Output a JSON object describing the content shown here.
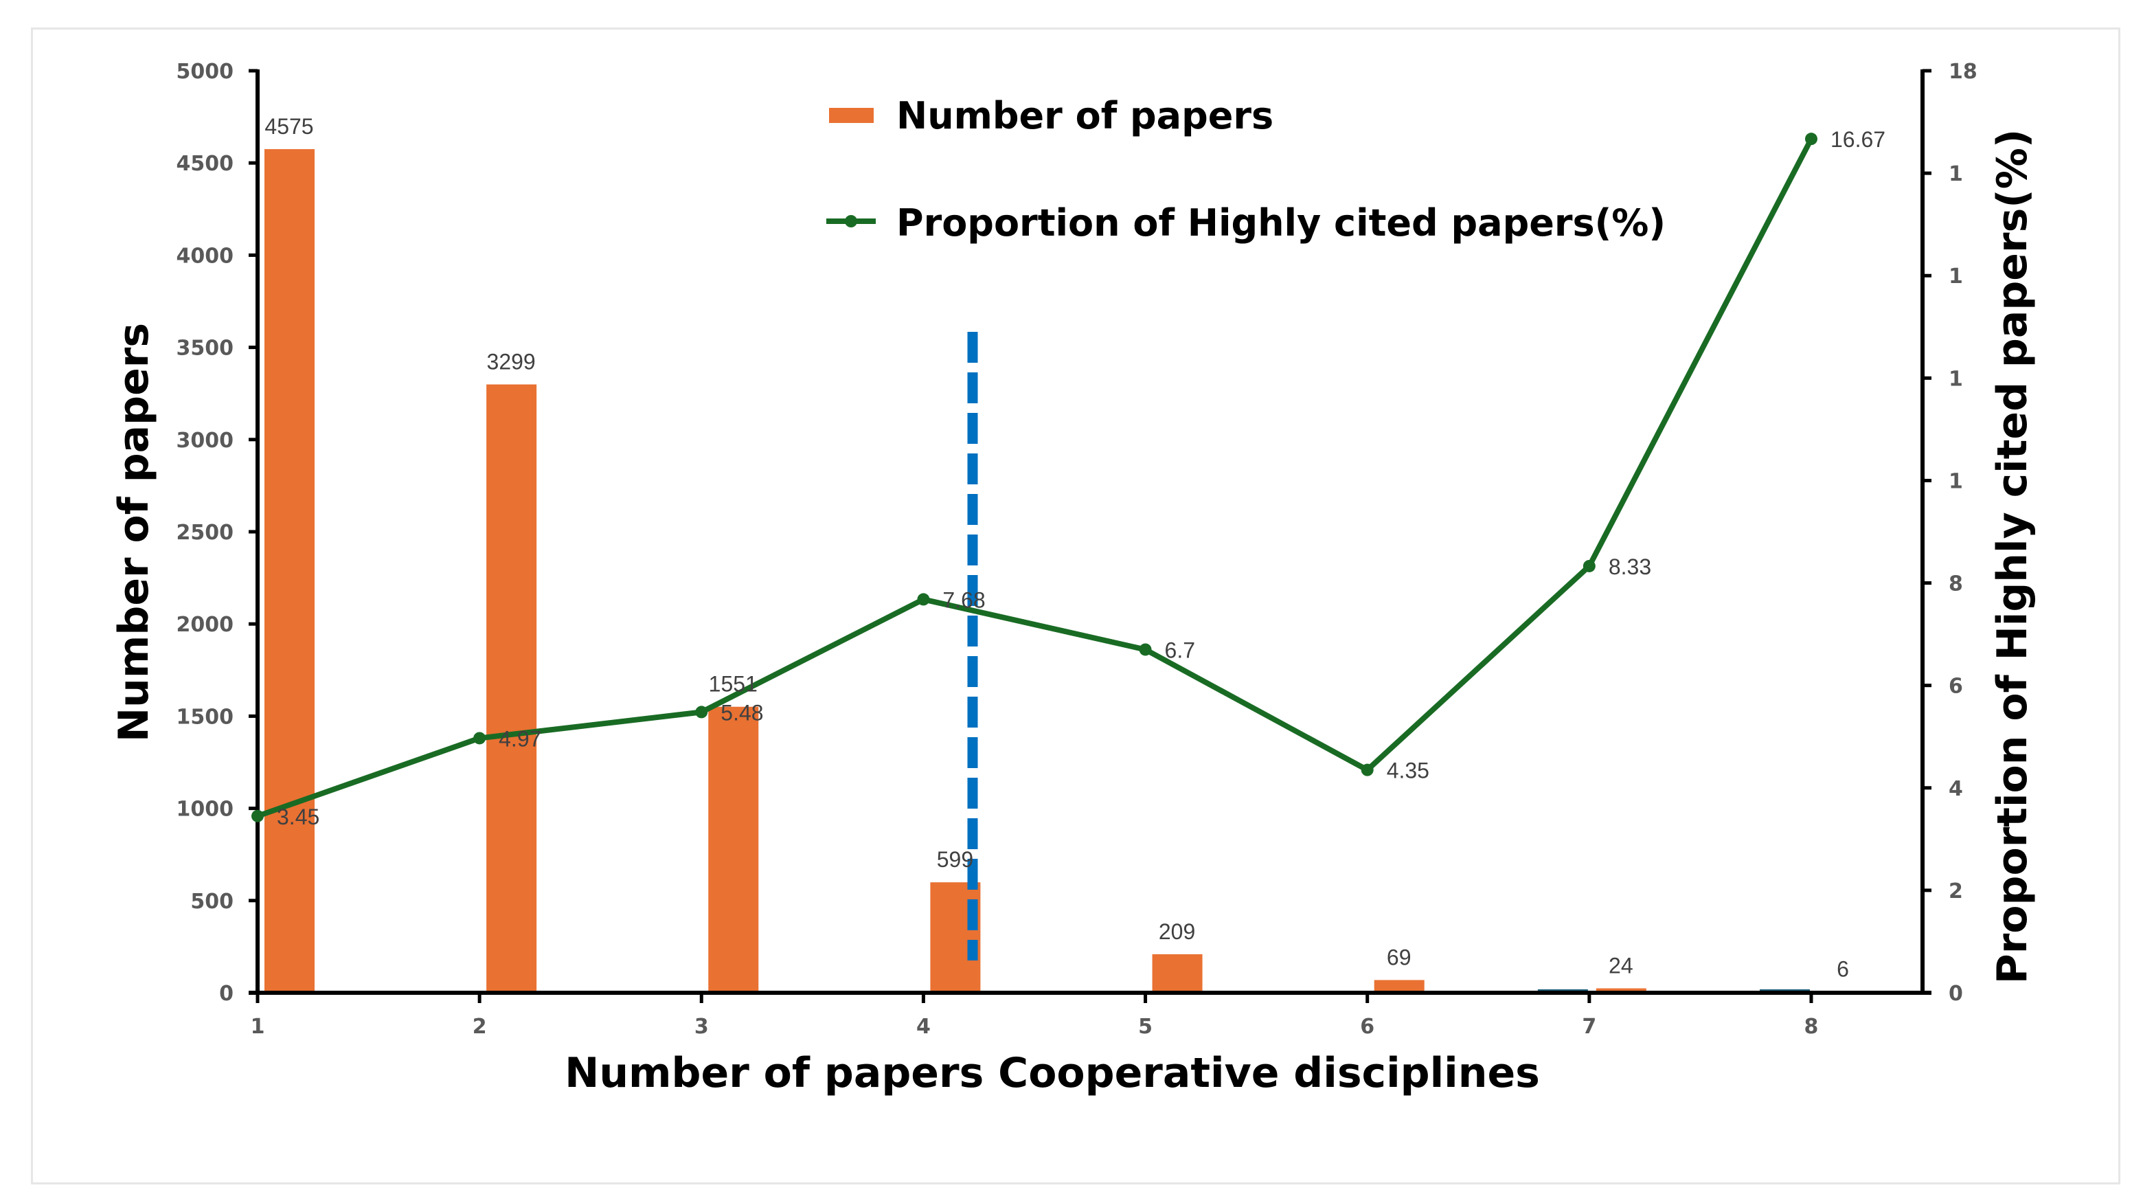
{
  "chart_data": {
    "type": "bar+line",
    "title": "",
    "xlabel": "Number of papers Cooperative disciplines",
    "ylabel": "Number of papers",
    "y2label": "Proportion of Highly cited papers(%)",
    "categories": [
      "1",
      "2",
      "3",
      "4",
      "5",
      "6",
      "7",
      "8"
    ],
    "series": [
      {
        "name": "Number of papers",
        "type": "bar",
        "axis": "left",
        "color": "#E97132",
        "values": [
          4575,
          3299,
          1551,
          599,
          209,
          69,
          24,
          6
        ],
        "labels": [
          "4575",
          "3299",
          "1551",
          "599",
          "209",
          "69",
          "24",
          "6"
        ]
      },
      {
        "name": "Proportion of Highly cited papers(%)",
        "type": "line",
        "axis": "right",
        "color": "#196B24",
        "marker": "circle",
        "values": [
          3.45,
          4.97,
          5.48,
          7.68,
          6.7,
          4.35,
          8.33,
          16.67
        ],
        "labels": [
          "3.45",
          "4.97",
          "5.48",
          "7.68",
          "6.7",
          "4.35",
          "8.33",
          "16.67"
        ]
      }
    ],
    "ylim": [
      0,
      5000
    ],
    "y2lim": [
      0,
      18
    ],
    "yticks": [
      "0",
      "500",
      "1000",
      "1500",
      "2000",
      "2500",
      "3000",
      "3500",
      "4000",
      "4500",
      "5000"
    ],
    "y2ticks": [
      "0",
      "2",
      "4",
      "6",
      "8",
      "1",
      "1",
      "1",
      "1",
      "18"
    ],
    "grid": false,
    "legend_position": "top-center",
    "annotations": [
      {
        "type": "vertical-dashed-line",
        "color": "#0070C0",
        "x_between": [
          4,
          5
        ],
        "x_approx": 4.22
      }
    ]
  }
}
